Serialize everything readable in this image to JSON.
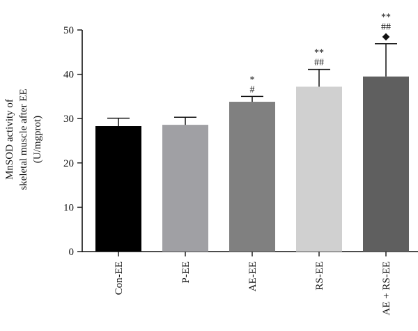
{
  "chart_data": {
    "type": "bar",
    "title": "",
    "xlabel": "",
    "ylabel_lines": [
      "MnSOD activity of",
      "skeletal muscle after EE",
      "(U/mgprot)"
    ],
    "ylim": [
      0,
      50
    ],
    "yticks": [
      0,
      10,
      20,
      30,
      40,
      50
    ],
    "grid": false,
    "legend": "none",
    "categories": [
      "Con-EE",
      "P-EE",
      "AE-EE",
      "RS-EE",
      "AE + RS-EE"
    ],
    "values": [
      28.3,
      28.6,
      33.8,
      37.2,
      39.5
    ],
    "errors": [
      1.8,
      1.7,
      1.2,
      3.9,
      7.4
    ],
    "colors": [
      "#000000",
      "#a0a0a4",
      "#808080",
      "#d0d0d0",
      "#5f5f5f"
    ],
    "annotations": [
      [],
      [],
      [
        "*",
        "#"
      ],
      [
        "**",
        "##"
      ],
      [
        "**",
        "##",
        "◆"
      ]
    ]
  }
}
